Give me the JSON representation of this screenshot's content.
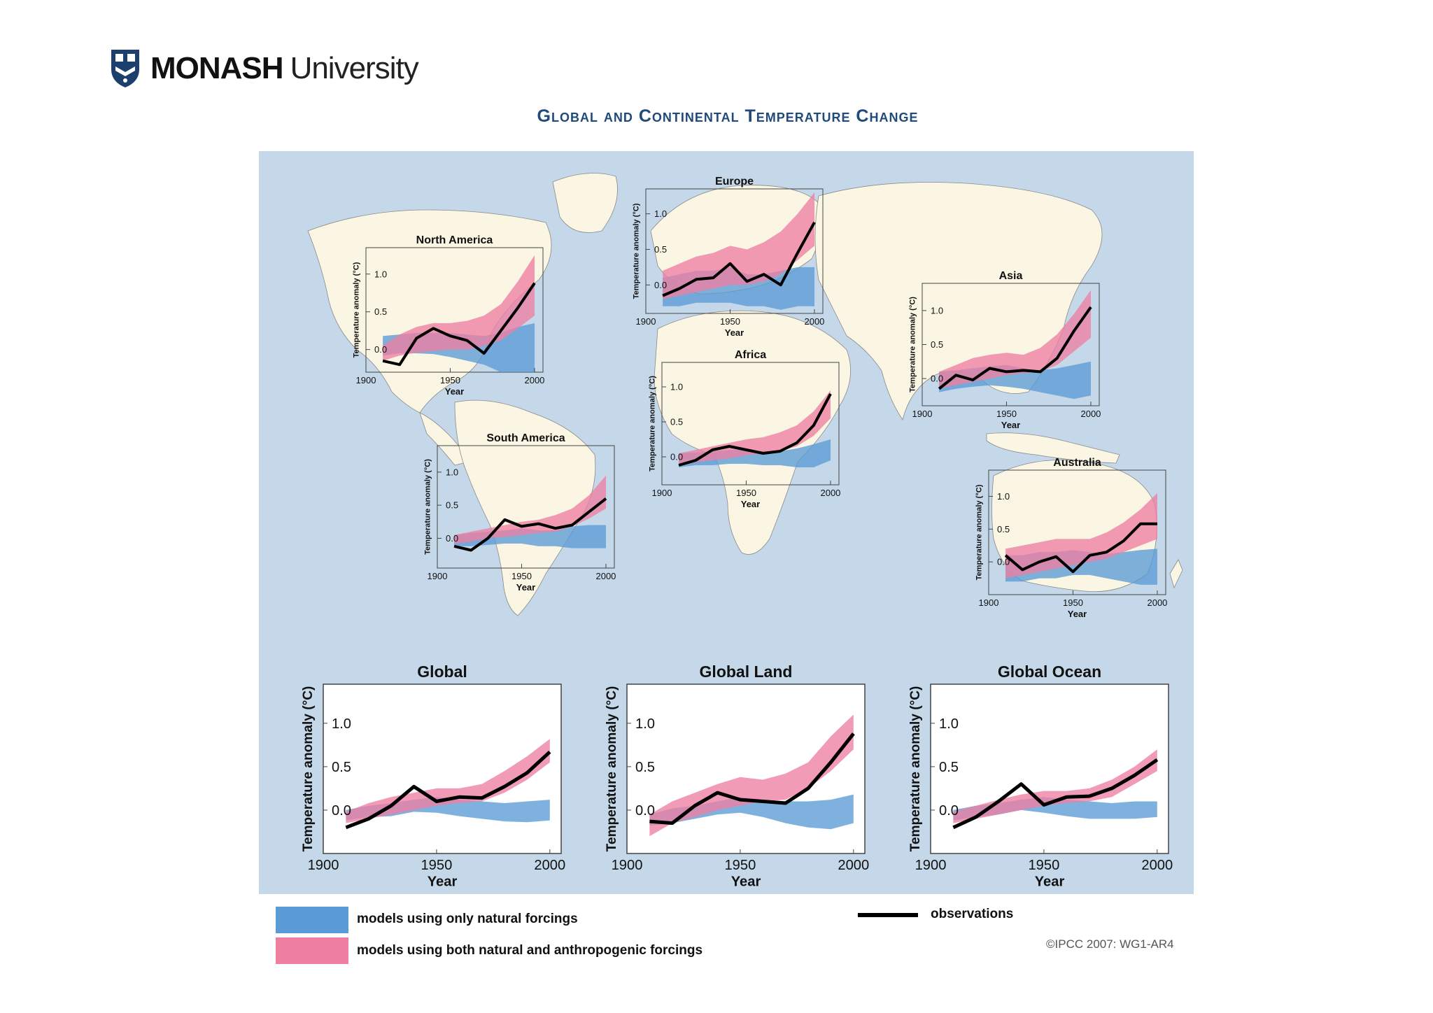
{
  "header": {
    "brand": "MONASH",
    "brand_sub": "University",
    "title": "Global and Continental Temperature Change"
  },
  "legend": {
    "natural": "models using only natural forcings",
    "both": "models using both natural and anthropogenic forcings",
    "observations": "observations"
  },
  "credit": "©IPCC 2007: WG1-AR4",
  "colors": {
    "ocean": "#c5d8ea",
    "land": "#fbf6e3",
    "natural": "#5b9bd5",
    "both": "#ee7fa1",
    "obs": "#000000",
    "title": "#1f4a7a"
  },
  "chart_data": [
    {
      "type": "area",
      "title": "North America",
      "xlabel": "Year",
      "ylabel": "Temperature anomaly (°C)",
      "xlim": [
        1900,
        2005
      ],
      "ylim": [
        -0.3,
        1.35
      ],
      "x_ticks": [
        1900,
        1950,
        2000
      ],
      "y_ticks": [
        0.0,
        0.5,
        1.0
      ],
      "x": [
        1910,
        1920,
        1930,
        1940,
        1950,
        1960,
        1970,
        1980,
        1990,
        2000
      ],
      "observations": [
        -0.15,
        -0.2,
        0.15,
        0.28,
        0.18,
        0.12,
        -0.05,
        0.25,
        0.55,
        0.88
      ],
      "natural": {
        "lower": [
          -0.08,
          -0.05,
          -0.05,
          -0.06,
          -0.1,
          -0.15,
          -0.2,
          -0.3,
          -0.3,
          -0.3
        ],
        "upper": [
          0.18,
          0.2,
          0.22,
          0.22,
          0.22,
          0.2,
          0.18,
          0.22,
          0.3,
          0.35
        ]
      },
      "both": {
        "lower": [
          -0.15,
          -0.08,
          -0.04,
          -0.02,
          0.0,
          0.0,
          0.05,
          0.12,
          0.28,
          0.45
        ],
        "upper": [
          0.05,
          0.2,
          0.3,
          0.35,
          0.35,
          0.38,
          0.45,
          0.6,
          0.9,
          1.25
        ]
      }
    },
    {
      "type": "area",
      "title": "Europe",
      "xlabel": "Year",
      "ylabel": "Temperature anomaly (°C)",
      "xlim": [
        1900,
        2005
      ],
      "ylim": [
        -0.4,
        1.35
      ],
      "x_ticks": [
        1900,
        1950,
        2000
      ],
      "y_ticks": [
        0.0,
        0.5,
        1.0
      ],
      "x": [
        1910,
        1920,
        1930,
        1940,
        1950,
        1960,
        1970,
        1980,
        1990,
        2000
      ],
      "observations": [
        -0.15,
        -0.05,
        0.08,
        0.1,
        0.3,
        0.05,
        0.15,
        0.0,
        0.45,
        0.88
      ],
      "natural": {
        "lower": [
          -0.3,
          -0.3,
          -0.25,
          -0.25,
          -0.25,
          -0.3,
          -0.3,
          -0.35,
          -0.3,
          -0.3
        ],
        "upper": [
          0.1,
          0.15,
          0.2,
          0.2,
          0.25,
          0.15,
          0.15,
          0.2,
          0.25,
          0.25
        ]
      },
      "both": {
        "lower": [
          -0.2,
          -0.15,
          -0.1,
          -0.05,
          0.0,
          0.0,
          0.05,
          0.15,
          0.35,
          0.55
        ],
        "upper": [
          0.2,
          0.3,
          0.4,
          0.45,
          0.55,
          0.5,
          0.6,
          0.75,
          1.0,
          1.3
        ]
      }
    },
    {
      "type": "area",
      "title": "Asia",
      "xlabel": "Year",
      "ylabel": "Temperature anomaly (°C)",
      "xlim": [
        1900,
        2005
      ],
      "ylim": [
        -0.4,
        1.4
      ],
      "x_ticks": [
        1900,
        1950,
        2000
      ],
      "y_ticks": [
        0.0,
        0.5,
        1.0
      ],
      "x": [
        1910,
        1920,
        1930,
        1940,
        1950,
        1960,
        1970,
        1980,
        1990,
        2000
      ],
      "observations": [
        -0.15,
        0.05,
        -0.02,
        0.15,
        0.1,
        0.12,
        0.1,
        0.3,
        0.7,
        1.05
      ],
      "natural": {
        "lower": [
          -0.2,
          -0.15,
          -0.12,
          -0.1,
          -0.12,
          -0.15,
          -0.2,
          -0.25,
          -0.3,
          -0.25
        ],
        "upper": [
          0.1,
          0.12,
          0.15,
          0.18,
          0.2,
          0.15,
          0.12,
          0.15,
          0.2,
          0.25
        ]
      },
      "both": {
        "lower": [
          -0.15,
          -0.1,
          -0.05,
          0.0,
          0.05,
          0.08,
          0.1,
          0.2,
          0.4,
          0.6
        ],
        "upper": [
          0.1,
          0.2,
          0.3,
          0.35,
          0.38,
          0.35,
          0.45,
          0.65,
          0.95,
          1.3
        ]
      }
    },
    {
      "type": "area",
      "title": "Africa",
      "xlabel": "Year",
      "ylabel": "Temperature anomaly (°C)",
      "xlim": [
        1900,
        2005
      ],
      "ylim": [
        -0.4,
        1.35
      ],
      "x_ticks": [
        1900,
        1950,
        2000
      ],
      "y_ticks": [
        0.0,
        0.5,
        1.0
      ],
      "x": [
        1910,
        1920,
        1930,
        1940,
        1950,
        1960,
        1970,
        1980,
        1990,
        2000
      ],
      "observations": [
        -0.12,
        -0.05,
        0.1,
        0.15,
        0.1,
        0.05,
        0.08,
        0.2,
        0.45,
        0.9
      ],
      "natural": {
        "lower": [
          -0.15,
          -0.12,
          -0.12,
          -0.1,
          -0.1,
          -0.12,
          -0.12,
          -0.15,
          -0.15,
          -0.05
        ],
        "upper": [
          0.05,
          0.06,
          0.08,
          0.1,
          0.1,
          0.08,
          0.08,
          0.12,
          0.18,
          0.25
        ]
      },
      "both": {
        "lower": [
          -0.12,
          -0.08,
          -0.05,
          -0.02,
          0.02,
          0.05,
          0.08,
          0.15,
          0.3,
          0.55
        ],
        "upper": [
          0.05,
          0.1,
          0.15,
          0.2,
          0.25,
          0.28,
          0.35,
          0.45,
          0.65,
          0.95
        ]
      }
    },
    {
      "type": "area",
      "title": "South America",
      "xlabel": "Year",
      "ylabel": "Temperature anomaly (°C)",
      "xlim": [
        1900,
        2005
      ],
      "ylim": [
        -0.45,
        1.4
      ],
      "x_ticks": [
        1900,
        1950,
        2000
      ],
      "y_ticks": [
        0.0,
        0.5,
        1.0
      ],
      "x": [
        1910,
        1920,
        1930,
        1940,
        1950,
        1960,
        1970,
        1980,
        1990,
        2000
      ],
      "observations": [
        -0.12,
        -0.18,
        0.0,
        0.28,
        0.18,
        0.22,
        0.15,
        0.2,
        0.4,
        0.6
      ],
      "natural": {
        "lower": [
          -0.12,
          -0.12,
          -0.1,
          -0.08,
          -0.08,
          -0.12,
          -0.12,
          -0.15,
          -0.15,
          -0.15
        ],
        "upper": [
          0.05,
          0.08,
          0.1,
          0.12,
          0.15,
          0.12,
          0.12,
          0.18,
          0.2,
          0.2
        ]
      },
      "both": {
        "lower": [
          -0.08,
          -0.05,
          0.0,
          0.02,
          0.05,
          0.08,
          0.1,
          0.18,
          0.3,
          0.45
        ],
        "upper": [
          0.05,
          0.1,
          0.15,
          0.2,
          0.25,
          0.28,
          0.35,
          0.45,
          0.65,
          0.95
        ]
      }
    },
    {
      "type": "area",
      "title": "Australia",
      "xlabel": "Year",
      "ylabel": "Temperature anomaly (°C)",
      "xlim": [
        1900,
        2005
      ],
      "ylim": [
        -0.5,
        1.4
      ],
      "x_ticks": [
        1900,
        1950,
        2000
      ],
      "y_ticks": [
        0.0,
        0.5,
        1.0
      ],
      "x": [
        1910,
        1920,
        1930,
        1940,
        1950,
        1960,
        1970,
        1980,
        1990,
        2000
      ],
      "observations": [
        0.1,
        -0.12,
        0.0,
        0.08,
        -0.15,
        0.1,
        0.15,
        0.32,
        0.58,
        0.58
      ],
      "natural": {
        "lower": [
          -0.3,
          -0.3,
          -0.25,
          -0.25,
          -0.2,
          -0.2,
          -0.25,
          -0.3,
          -0.35,
          -0.35
        ],
        "upper": [
          0.1,
          0.1,
          0.15,
          0.15,
          0.18,
          0.15,
          0.12,
          0.15,
          0.18,
          0.2
        ]
      },
      "both": {
        "lower": [
          -0.25,
          -0.2,
          -0.15,
          -0.1,
          -0.05,
          0.0,
          0.05,
          0.15,
          0.25,
          0.35
        ],
        "upper": [
          0.2,
          0.25,
          0.3,
          0.35,
          0.35,
          0.35,
          0.45,
          0.6,
          0.8,
          1.05
        ]
      }
    },
    {
      "type": "area",
      "title": "Global",
      "xlabel": "Year",
      "ylabel": "Temperature anomaly (°C)",
      "xlim": [
        1900,
        2005
      ],
      "ylim": [
        -0.5,
        1.45
      ],
      "x_ticks": [
        1900,
        1950,
        2000
      ],
      "y_ticks": [
        0.0,
        0.5,
        1.0
      ],
      "x": [
        1910,
        1920,
        1930,
        1940,
        1950,
        1960,
        1970,
        1980,
        1990,
        2000
      ],
      "observations": [
        -0.2,
        -0.1,
        0.05,
        0.27,
        0.1,
        0.15,
        0.14,
        0.27,
        0.43,
        0.67
      ],
      "natural": {
        "lower": [
          -0.12,
          -0.08,
          -0.07,
          -0.02,
          -0.03,
          -0.07,
          -0.1,
          -0.13,
          -0.14,
          -0.12
        ],
        "upper": [
          0.0,
          0.05,
          0.08,
          0.12,
          0.15,
          0.12,
          0.1,
          0.08,
          0.1,
          0.12
        ]
      },
      "both": {
        "lower": [
          -0.15,
          -0.1,
          -0.05,
          0.0,
          0.05,
          0.08,
          0.1,
          0.2,
          0.35,
          0.55
        ],
        "upper": [
          -0.02,
          0.08,
          0.15,
          0.2,
          0.25,
          0.25,
          0.3,
          0.45,
          0.62,
          0.82
        ]
      }
    },
    {
      "type": "area",
      "title": "Global Land",
      "xlabel": "Year",
      "ylabel": "Temperature anomaly (°C)",
      "xlim": [
        1900,
        2005
      ],
      "ylim": [
        -0.5,
        1.45
      ],
      "x_ticks": [
        1900,
        1950,
        2000
      ],
      "y_ticks": [
        0.0,
        0.5,
        1.0
      ],
      "x": [
        1910,
        1920,
        1930,
        1940,
        1950,
        1960,
        1970,
        1980,
        1990,
        2000
      ],
      "observations": [
        -0.13,
        -0.15,
        0.05,
        0.2,
        0.12,
        0.1,
        0.08,
        0.25,
        0.55,
        0.88
      ],
      "natural": {
        "lower": [
          -0.18,
          -0.15,
          -0.1,
          -0.05,
          -0.03,
          -0.08,
          -0.15,
          -0.2,
          -0.22,
          -0.15
        ],
        "upper": [
          -0.05,
          0.02,
          0.05,
          0.1,
          0.15,
          0.12,
          0.1,
          0.1,
          0.12,
          0.18
        ]
      },
      "both": {
        "lower": [
          -0.3,
          -0.15,
          -0.08,
          0.0,
          0.05,
          0.1,
          0.12,
          0.25,
          0.45,
          0.7
        ],
        "upper": [
          -0.05,
          0.1,
          0.2,
          0.3,
          0.38,
          0.35,
          0.42,
          0.55,
          0.85,
          1.1
        ]
      }
    },
    {
      "type": "area",
      "title": "Global Ocean",
      "xlabel": "Year",
      "ylabel": "Temperature anomaly (°C)",
      "xlim": [
        1900,
        2005
      ],
      "ylim": [
        -0.5,
        1.45
      ],
      "x_ticks": [
        1900,
        1950,
        2000
      ],
      "y_ticks": [
        0.0,
        0.5,
        1.0
      ],
      "x": [
        1910,
        1920,
        1930,
        1940,
        1950,
        1960,
        1970,
        1980,
        1990,
        2000
      ],
      "observations": [
        -0.2,
        -0.08,
        0.1,
        0.3,
        0.06,
        0.15,
        0.16,
        0.25,
        0.4,
        0.58
      ],
      "natural": {
        "lower": [
          -0.12,
          -0.08,
          -0.05,
          0.0,
          -0.03,
          -0.07,
          -0.1,
          -0.1,
          -0.1,
          -0.08
        ],
        "upper": [
          0.0,
          0.05,
          0.08,
          0.12,
          0.15,
          0.12,
          0.1,
          0.08,
          0.1,
          0.1
        ]
      },
      "both": {
        "lower": [
          -0.15,
          -0.1,
          -0.05,
          0.0,
          0.05,
          0.08,
          0.1,
          0.15,
          0.3,
          0.45
        ],
        "upper": [
          -0.02,
          0.05,
          0.12,
          0.18,
          0.22,
          0.22,
          0.25,
          0.35,
          0.5,
          0.7
        ]
      }
    }
  ]
}
